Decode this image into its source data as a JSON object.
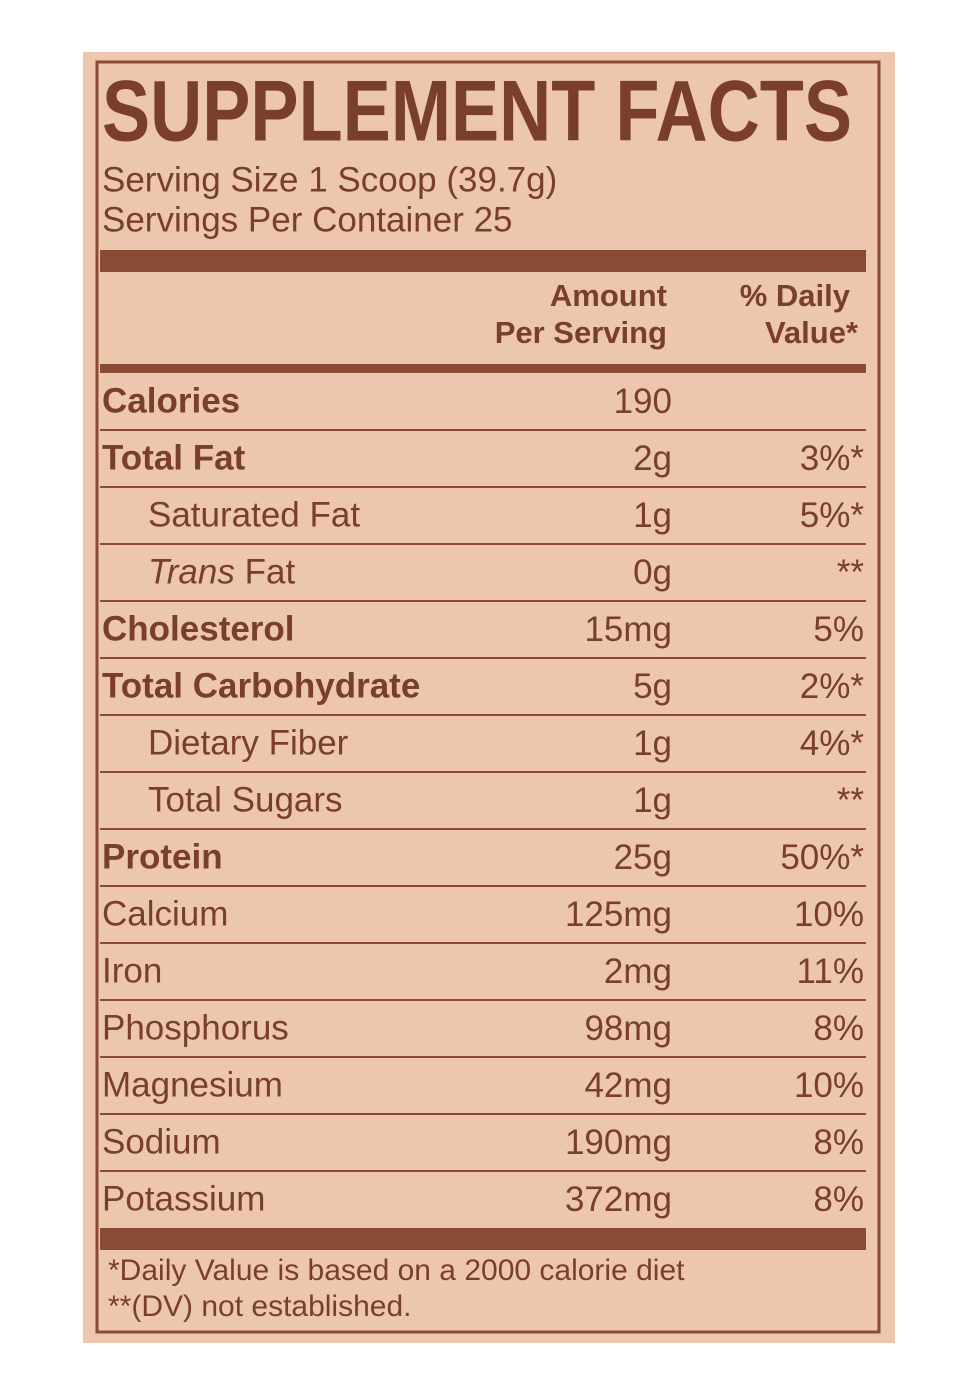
{
  "title": "SUPPLEMENT FACTS",
  "serving_size": "Serving Size 1 Scoop (39.7g)",
  "servings_per_container": "Servings Per Container 25",
  "header": {
    "amount": [
      "Amount",
      "Per Serving"
    ],
    "daily_value": [
      "% Daily",
      "Value*"
    ]
  },
  "rows": [
    {
      "name": "Calories",
      "amount": "190",
      "bold": true
    },
    {
      "name": "Total Fat",
      "amount": "2g",
      "daily_value": "3%*",
      "bold": true
    },
    {
      "name": "Saturated Fat",
      "amount": "1g",
      "daily_value": "5%*",
      "indent": true
    },
    {
      "name_italic": "Trans",
      "name": "Fat",
      "amount": "0g",
      "daily_value": "**",
      "indent": true
    },
    {
      "name": "Cholesterol",
      "amount": "15mg",
      "daily_value": "5%",
      "bold": true
    },
    {
      "name": "Total Carbohydrate",
      "amount": "5g",
      "daily_value": "2%*",
      "bold": true
    },
    {
      "name": "Dietary Fiber",
      "amount": "1g",
      "daily_value": "4%*",
      "indent": true
    },
    {
      "name": "Total Sugars",
      "amount": "1g",
      "daily_value": "**",
      "indent": true
    },
    {
      "name": "Protein",
      "amount": "25g",
      "daily_value": "50%*",
      "bold": true
    },
    {
      "name": "Calcium",
      "amount": "125mg",
      "daily_value": "10%"
    },
    {
      "name": "Iron",
      "amount": "2mg",
      "daily_value": "11%"
    },
    {
      "name": "Phosphorus",
      "amount": "98mg",
      "daily_value": "8%"
    },
    {
      "name": "Magnesium",
      "amount": "42mg",
      "daily_value": "10%"
    },
    {
      "name": "Sodium",
      "amount": "190mg",
      "daily_value": "8%"
    },
    {
      "name": "Potassium",
      "amount": "372mg",
      "daily_value": "8%"
    }
  ],
  "footnotes": [
    "*Daily Value is based on a 2000 calorie diet",
    "**(DV) not established."
  ]
}
